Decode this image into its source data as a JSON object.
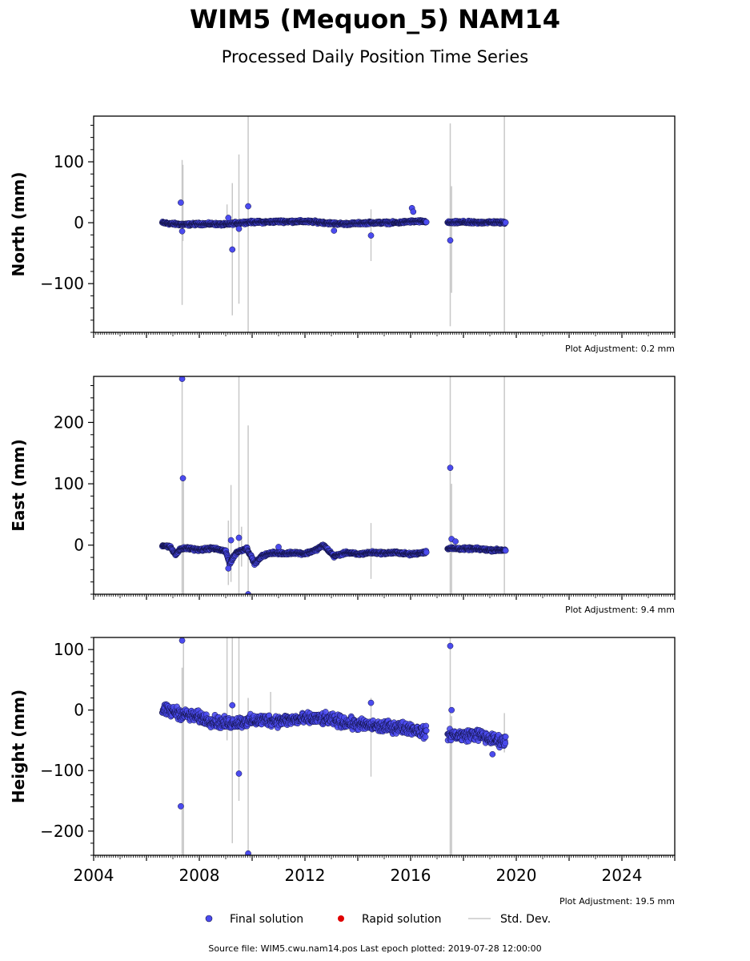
{
  "chart_data": {
    "type": "scatter",
    "title": "WIM5 (Mequon_5) NAM14",
    "subtitle": "Processed Daily Position Time Series",
    "x_ticks": [
      "2004",
      "2008",
      "2012",
      "2016",
      "2020",
      "2024"
    ],
    "xlim": [
      2004,
      2026
    ],
    "panels": [
      {
        "ylabel": "North (mm)",
        "ylim": [
          -180,
          175
        ],
        "yticks": [
          100,
          0,
          -100
        ],
        "ytick_labels": [
          "100",
          "0",
          "−100"
        ],
        "adjustment": "Plot Adjustment: 0.2 mm",
        "segments": [
          {
            "x0": 2006.6,
            "x1": 2016.6,
            "pts": [
              [
                2006.6,
                0
              ],
              [
                2007.0,
                -2
              ],
              [
                2007.5,
                -3
              ],
              [
                2008.0,
                -2
              ],
              [
                2008.5,
                -2
              ],
              [
                2009.0,
                -3
              ],
              [
                2009.5,
                0
              ],
              [
                2010.0,
                1
              ],
              [
                2010.5,
                1
              ],
              [
                2011.0,
                2
              ],
              [
                2011.5,
                2
              ],
              [
                2012.0,
                2
              ],
              [
                2012.5,
                1
              ],
              [
                2013.0,
                -1
              ],
              [
                2013.5,
                -2
              ],
              [
                2014.0,
                -1
              ],
              [
                2014.5,
                0
              ],
              [
                2015.0,
                0
              ],
              [
                2015.5,
                0
              ],
              [
                2016.0,
                2
              ],
              [
                2016.6,
                2
              ]
            ]
          },
          {
            "x0": 2017.4,
            "x1": 2019.6,
            "pts": [
              [
                2017.4,
                0
              ],
              [
                2018.0,
                1
              ],
              [
                2018.5,
                0
              ],
              [
                2019.0,
                1
              ],
              [
                2019.6,
                0
              ]
            ]
          }
        ],
        "outliers": [
          [
            2007.3,
            33
          ],
          [
            2007.35,
            -14
          ],
          [
            2009.25,
            -44
          ],
          [
            2009.1,
            8
          ],
          [
            2009.5,
            -10
          ],
          [
            2009.85,
            27
          ],
          [
            2014.5,
            -21
          ],
          [
            2016.05,
            24
          ],
          [
            2016.1,
            18
          ],
          [
            2013.1,
            -13
          ],
          [
            2017.5,
            -29
          ]
        ],
        "errorbars": [
          [
            2007.35,
            -135,
            103
          ],
          [
            2007.38,
            -30,
            95
          ],
          [
            2009.05,
            -10,
            30
          ],
          [
            2009.25,
            -152,
            65
          ],
          [
            2009.5,
            -133,
            112
          ],
          [
            2009.85,
            -180,
            175
          ],
          [
            2014.5,
            -63,
            22
          ],
          [
            2017.5,
            -170,
            163
          ],
          [
            2017.55,
            -115,
            60
          ],
          [
            2019.55,
            -180,
            175
          ]
        ],
        "spread": 3
      },
      {
        "ylabel": "East (mm)",
        "ylim": [
          -80,
          275
        ],
        "yticks": [
          200,
          100,
          0
        ],
        "ytick_labels": [
          "200",
          "100",
          "0"
        ],
        "adjustment": "Plot Adjustment: 9.4 mm",
        "segments": [
          {
            "x0": 2006.6,
            "x1": 2016.6,
            "pts": [
              [
                2006.6,
                0
              ],
              [
                2006.9,
                -3
              ],
              [
                2007.1,
                -15
              ],
              [
                2007.3,
                -6
              ],
              [
                2007.6,
                -5
              ],
              [
                2008.0,
                -8
              ],
              [
                2008.5,
                -5
              ],
              [
                2009.0,
                -10
              ],
              [
                2009.15,
                -30
              ],
              [
                2009.4,
                -12
              ],
              [
                2009.8,
                -5
              ],
              [
                2010.1,
                -30
              ],
              [
                2010.4,
                -17
              ],
              [
                2010.8,
                -12
              ],
              [
                2011.2,
                -14
              ],
              [
                2011.6,
                -12
              ],
              [
                2012.0,
                -14
              ],
              [
                2012.4,
                -8
              ],
              [
                2012.7,
                0
              ],
              [
                2013.1,
                -18
              ],
              [
                2013.6,
                -12
              ],
              [
                2014.0,
                -15
              ],
              [
                2014.5,
                -12
              ],
              [
                2015.0,
                -13
              ],
              [
                2015.5,
                -12
              ],
              [
                2016.0,
                -15
              ],
              [
                2016.6,
                -11
              ]
            ]
          },
          {
            "x0": 2017.4,
            "x1": 2019.6,
            "pts": [
              [
                2017.4,
                -5
              ],
              [
                2018.0,
                -6
              ],
              [
                2018.5,
                -6
              ],
              [
                2019.0,
                -8
              ],
              [
                2019.6,
                -8
              ]
            ]
          }
        ],
        "outliers": [
          [
            2007.35,
            271
          ],
          [
            2007.38,
            109
          ],
          [
            2009.1,
            -38
          ],
          [
            2009.2,
            8
          ],
          [
            2009.5,
            12
          ],
          [
            2009.85,
            -80
          ],
          [
            2011.0,
            -3
          ],
          [
            2017.5,
            126
          ],
          [
            2017.55,
            10
          ],
          [
            2017.7,
            6
          ]
        ],
        "errorbars": [
          [
            2007.35,
            -80,
            275
          ],
          [
            2007.4,
            -80,
            108
          ],
          [
            2009.1,
            -65,
            40
          ],
          [
            2009.2,
            -60,
            98
          ],
          [
            2009.5,
            -80,
            275
          ],
          [
            2009.6,
            -35,
            30
          ],
          [
            2009.85,
            -80,
            195
          ],
          [
            2014.5,
            -55,
            36
          ],
          [
            2017.5,
            -80,
            275
          ],
          [
            2017.55,
            -80,
            100
          ],
          [
            2019.55,
            -80,
            275
          ]
        ],
        "spread": 3
      },
      {
        "ylabel": "Height (mm)",
        "ylim": [
          -240,
          120
        ],
        "yticks": [
          100,
          0,
          -100,
          -200
        ],
        "ytick_labels": [
          "100",
          "0",
          "−100",
          "−200"
        ],
        "adjustment": "Plot Adjustment: 19.5 mm",
        "segments": [
          {
            "x0": 2006.6,
            "x1": 2016.6,
            "pts": [
              [
                2006.6,
                0
              ],
              [
                2007.0,
                -3
              ],
              [
                2007.5,
                -8
              ],
              [
                2008.0,
                -12
              ],
              [
                2008.5,
                -18
              ],
              [
                2009.0,
                -22
              ],
              [
                2009.5,
                -20
              ],
              [
                2010.0,
                -18
              ],
              [
                2010.5,
                -16
              ],
              [
                2011.0,
                -18
              ],
              [
                2011.5,
                -16
              ],
              [
                2012.0,
                -15
              ],
              [
                2012.5,
                -14
              ],
              [
                2013.0,
                -16
              ],
              [
                2013.5,
                -20
              ],
              [
                2014.0,
                -24
              ],
              [
                2014.5,
                -26
              ],
              [
                2015.0,
                -28
              ],
              [
                2015.5,
                -28
              ],
              [
                2016.0,
                -30
              ],
              [
                2016.6,
                -38
              ]
            ]
          },
          {
            "x0": 2017.4,
            "x1": 2019.6,
            "pts": [
              [
                2017.4,
                -40
              ],
              [
                2018.0,
                -42
              ],
              [
                2018.5,
                -40
              ],
              [
                2019.0,
                -48
              ],
              [
                2019.6,
                -52
              ]
            ]
          }
        ],
        "outliers": [
          [
            2007.35,
            115
          ],
          [
            2007.3,
            -159
          ],
          [
            2009.25,
            8
          ],
          [
            2009.5,
            -105
          ],
          [
            2009.85,
            -237
          ],
          [
            2014.5,
            12
          ],
          [
            2017.5,
            106
          ],
          [
            2017.55,
            0
          ],
          [
            2019.1,
            -73
          ]
        ],
        "errorbars": [
          [
            2007.35,
            -240,
            70
          ],
          [
            2007.4,
            -240,
            120
          ],
          [
            2009.05,
            -50,
            120
          ],
          [
            2009.25,
            -220,
            120
          ],
          [
            2009.5,
            -150,
            120
          ],
          [
            2009.85,
            -240,
            20
          ],
          [
            2010.7,
            -30,
            30
          ],
          [
            2014.5,
            -110,
            20
          ],
          [
            2017.5,
            -240,
            120
          ],
          [
            2017.55,
            -240,
            -10
          ],
          [
            2019.55,
            -70,
            -5
          ]
        ],
        "spread": 14
      }
    ],
    "legend": {
      "final": "Final solution",
      "rapid": "Rapid solution",
      "stddev": "Std. Dev.",
      "placement": "bottom"
    },
    "colors": {
      "final": "#4b4bef",
      "final_edge": "#101040",
      "rapid": "#e00000",
      "stddev": "#c8c8c8"
    }
  },
  "footer": {
    "source": "Source file: WIM5.cwu.nam14.pos  Last epoch plotted: 2019-07-28 12:00:00"
  }
}
